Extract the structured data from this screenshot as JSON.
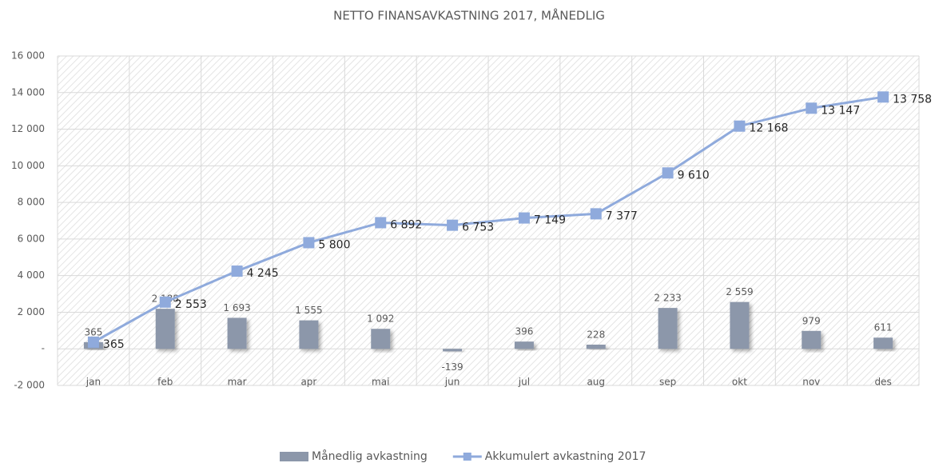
{
  "chart_data": {
    "type": "combo",
    "title": "NETTO FINANSAVKASTNING 2017, MÅNEDLIG",
    "categories": [
      "jan",
      "feb",
      "mar",
      "apr",
      "mai",
      "jun",
      "jul",
      "aug",
      "sep",
      "okt",
      "nov",
      "des"
    ],
    "series": [
      {
        "name": "Månedlig avkastning",
        "type": "bar",
        "color": "#8c97aa",
        "values": [
          365,
          2188,
          1693,
          1555,
          1092,
          -139,
          396,
          228,
          2233,
          2559,
          979,
          611
        ],
        "value_labels": [
          "365",
          "2 188",
          "1 693",
          "1 555",
          "1 092",
          "-139",
          "396",
          "228",
          "2 233",
          "2 559",
          "979",
          "611"
        ]
      },
      {
        "name": "Akkumulert avkastning 2017",
        "type": "line",
        "color": "#8faadc",
        "values": [
          365,
          2553,
          4245,
          5800,
          6892,
          6753,
          7149,
          7377,
          9610,
          12168,
          13147,
          13758
        ],
        "value_labels": [
          "365",
          "2 553",
          "4 245",
          "5 800",
          "6 892",
          "6 753",
          "7 149",
          "7 377",
          "9 610",
          "12 168",
          "13 147",
          "13 758"
        ]
      }
    ],
    "ylim": [
      -2000,
      16000
    ],
    "yticks": [
      {
        "value": -2000,
        "label": "-2 000"
      },
      {
        "value": 0,
        "label": "-"
      },
      {
        "value": 2000,
        "label": "2 000"
      },
      {
        "value": 4000,
        "label": "4 000"
      },
      {
        "value": 6000,
        "label": "6 000"
      },
      {
        "value": 8000,
        "label": "8 000"
      },
      {
        "value": 10000,
        "label": "10 000"
      },
      {
        "value": 12000,
        "label": "12 000"
      },
      {
        "value": 14000,
        "label": "14 000"
      },
      {
        "value": 16000,
        "label": "16 000"
      }
    ],
    "grid": true,
    "legend": "bottom"
  }
}
